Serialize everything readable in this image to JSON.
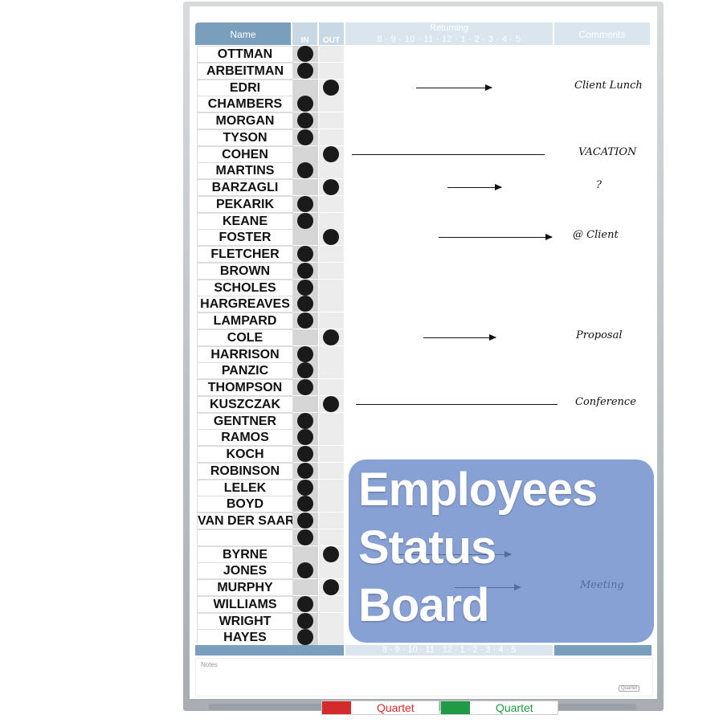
{
  "header": {
    "name": "Name",
    "in": "IN",
    "out": "OUT",
    "returning": "Returning",
    "hours": "8 · 9 · 10 · 11 · 12 · 1 · 2 · 3 · 4 · 5",
    "comments": "Comments"
  },
  "rows": [
    {
      "name": "OTTMAN",
      "status": "in",
      "note": ""
    },
    {
      "name": "ARBEITMAN",
      "status": "in",
      "note": ""
    },
    {
      "name": "EDRI",
      "status": "out",
      "note": "Client Lunch"
    },
    {
      "name": "CHAMBERS",
      "status": "in",
      "note": ""
    },
    {
      "name": "MORGAN",
      "status": "in",
      "note": ""
    },
    {
      "name": "TYSON",
      "status": "in",
      "note": ""
    },
    {
      "name": "COHEN",
      "status": "out",
      "note": "VACATION"
    },
    {
      "name": "MARTINS",
      "status": "in",
      "note": ""
    },
    {
      "name": "BARZAGLI",
      "status": "out",
      "note": "?"
    },
    {
      "name": "PEKARIK",
      "status": "in",
      "note": ""
    },
    {
      "name": "KEANE",
      "status": "in",
      "note": ""
    },
    {
      "name": "FOSTER",
      "status": "out",
      "note": "@ Client"
    },
    {
      "name": "FLETCHER",
      "status": "in",
      "note": ""
    },
    {
      "name": "BROWN",
      "status": "in",
      "note": ""
    },
    {
      "name": "SCHOLES",
      "status": "in",
      "note": ""
    },
    {
      "name": "HARGREAVES",
      "status": "in",
      "note": ""
    },
    {
      "name": "LAMPARD",
      "status": "in",
      "note": ""
    },
    {
      "name": "COLE",
      "status": "out",
      "note": "Proposal"
    },
    {
      "name": "HARRISON",
      "status": "in",
      "note": ""
    },
    {
      "name": "PANZIC",
      "status": "in",
      "note": ""
    },
    {
      "name": "THOMPSON",
      "status": "in",
      "note": ""
    },
    {
      "name": "KUSZCZAK",
      "status": "out",
      "note": "Conference"
    },
    {
      "name": "GENTNER",
      "status": "in",
      "note": ""
    },
    {
      "name": "RAMOS",
      "status": "in",
      "note": ""
    },
    {
      "name": "KOCH",
      "status": "in",
      "note": ""
    },
    {
      "name": "ROBINSON",
      "status": "in",
      "note": ""
    },
    {
      "name": "LELEK",
      "status": "in",
      "note": ""
    },
    {
      "name": "BOYD",
      "status": "in",
      "note": ""
    },
    {
      "name": "VAN DER SAAR",
      "status": "in",
      "note": ""
    },
    {
      "name": "",
      "status": "in",
      "note": ""
    },
    {
      "name": "BYRNE",
      "status": "out",
      "note": ""
    },
    {
      "name": "JONES",
      "status": "in",
      "note": ""
    },
    {
      "name": "MURPHY",
      "status": "out",
      "note": "Meeting"
    },
    {
      "name": "WILLIAMS",
      "status": "in",
      "note": ""
    },
    {
      "name": "WRIGHT",
      "status": "in",
      "note": ""
    },
    {
      "name": "HAYES",
      "status": "in",
      "note": ""
    }
  ],
  "footer": {
    "hours": "8 · 9 · 10 · 11 · 12 · 1 · 2 · 3 · 4 · 5",
    "notes_label": "Notes",
    "logo": "Quartet"
  },
  "markers": [
    {
      "brand": "Quartet",
      "color": "#d42a2a"
    },
    {
      "brand": "Quartet",
      "color": "#1f9a45"
    }
  ],
  "overlay": {
    "line1": "Employees",
    "line2": "Status",
    "line3": "Board",
    "color": "#6686c9"
  }
}
